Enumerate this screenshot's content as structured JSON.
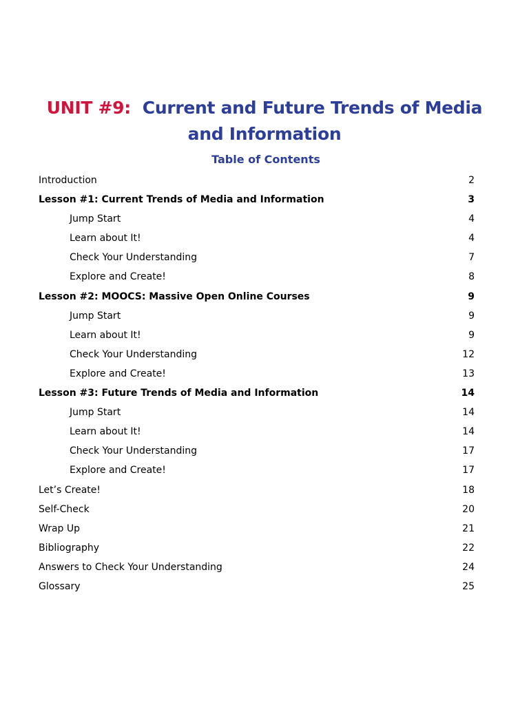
{
  "title": {
    "unit": "UNIT #9:",
    "text": "Current and Future Trends of Media and Information",
    "line1": "Current and Future Trends of Media",
    "line2": "and Information",
    "colors": {
      "unit": "#d0143c",
      "title": "#2c3e99"
    }
  },
  "toc": {
    "heading": "Table of Contents",
    "entries": [
      {
        "label": "Introduction",
        "page": "2",
        "level": "top"
      },
      {
        "label": "Lesson #1: Current Trends of Media and Information",
        "page": "3",
        "level": "lesson"
      },
      {
        "label": "Jump Start",
        "page": "4",
        "level": "sub"
      },
      {
        "label": "Learn about It!",
        "page": "4",
        "level": "sub"
      },
      {
        "label": "Check Your Understanding",
        "page": "7",
        "level": "sub"
      },
      {
        "label": "Explore and Create!",
        "page": "8",
        "level": "sub"
      },
      {
        "label": "Lesson #2: MOOCS: Massive Open Online Courses",
        "page": "9",
        "level": "lesson"
      },
      {
        "label": "Jump Start",
        "page": "9",
        "level": "sub"
      },
      {
        "label": "Learn about It!",
        "page": "9",
        "level": "sub"
      },
      {
        "label": "Check Your Understanding",
        "page": "12",
        "level": "sub"
      },
      {
        "label": "Explore and Create!",
        "page": "13",
        "level": "sub"
      },
      {
        "label": "Lesson #3: Future Trends of Media and Information",
        "page": "14",
        "level": "lesson"
      },
      {
        "label": "Jump Start",
        "page": "14",
        "level": "sub"
      },
      {
        "label": "Learn about It!",
        "page": "14",
        "level": "sub"
      },
      {
        "label": "Check Your Understanding",
        "page": "17",
        "level": "sub"
      },
      {
        "label": "Explore and Create!",
        "page": "17",
        "level": "sub"
      },
      {
        "label": "Let’s Create!",
        "page": "18",
        "level": "top"
      },
      {
        "label": "Self-Check",
        "page": "20",
        "level": "top"
      },
      {
        "label": "Wrap Up",
        "page": "21",
        "level": "top"
      },
      {
        "label": "Bibliography",
        "page": "22",
        "level": "top"
      },
      {
        "label": "Answers to Check Your Understanding",
        "page": "24",
        "level": "top"
      },
      {
        "label": "Glossary",
        "page": "25",
        "level": "top"
      }
    ]
  }
}
